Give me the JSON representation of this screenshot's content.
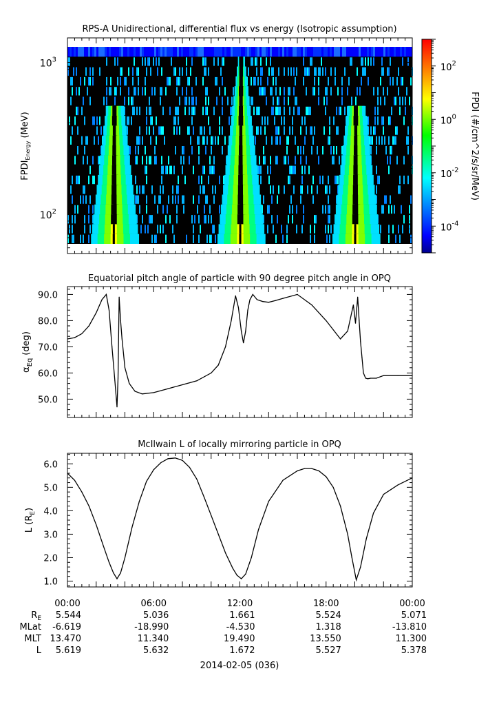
{
  "chart_data": [
    {
      "type": "heatmap",
      "title": "RPS-A Unidirectional, differential flux vs energy (Isotropic assumption)",
      "ylabel_main": "FPDI",
      "ylabel_sub": "Energy",
      "ylabel_unit": "(MeV)",
      "yscale": "log",
      "ylim": [
        55,
        1450
      ],
      "y_ticks": [
        {
          "value": 100,
          "base": "10",
          "exp": "2"
        },
        {
          "value": 1000,
          "base": "10",
          "exp": "3"
        }
      ],
      "x_ticks_hours": [
        0,
        6,
        12,
        18,
        24
      ],
      "enhancement_hours": [
        3.3,
        12.1,
        20.1
      ],
      "colorbar": {
        "label": "FPDI (#/cm^2/s/sr/MeV)",
        "scale": "log",
        "range": [
          1e-05,
          1000.0
        ],
        "ticks": [
          {
            "value": 100,
            "base": "10",
            "exp": "2"
          },
          {
            "value": 1,
            "base": "10",
            "exp": "0"
          },
          {
            "value": 0.01,
            "base": "10",
            "exp": "-2"
          },
          {
            "value": 0.0001,
            "base": "10",
            "exp": "-4"
          }
        ],
        "colors": [
          "#00008f",
          "#0000ff",
          "#00ffff",
          "#00ff00",
          "#ffff00",
          "#ff7f00",
          "#ff0000"
        ]
      },
      "background_color": "#000000"
    },
    {
      "type": "line",
      "title": "Equatorial pitch angle of particle with 90 degree pitch angle in OPQ",
      "ylabel_main": "α",
      "ylabel_sub": "Eq",
      "ylabel_unit": "(deg)",
      "ylim": [
        43,
        93
      ],
      "y_ticks": [
        50,
        60,
        70,
        80,
        90
      ],
      "x": [
        0,
        0.5,
        1.0,
        1.5,
        2.0,
        2.4,
        2.7,
        2.9,
        3.1,
        3.3,
        3.45,
        3.52,
        3.6,
        3.7,
        3.8,
        4.0,
        4.3,
        4.7,
        5.2,
        6.0,
        7.0,
        8.0,
        9.0,
        10.0,
        10.5,
        11.0,
        11.4,
        11.7,
        11.9,
        12.1,
        12.25,
        12.4,
        12.55,
        12.7,
        12.9,
        13.2,
        13.6,
        14.0,
        14.5,
        15.0,
        16.0,
        17.0,
        18.0,
        19.0,
        19.5,
        19.9,
        20.05,
        20.2,
        20.3,
        20.4,
        20.5,
        20.6,
        20.75,
        20.9,
        21.1,
        21.5,
        22.0,
        23.0,
        24.0
      ],
      "series": [
        {
          "color": "#000000",
          "values": [
            73,
            73.5,
            75,
            78,
            83,
            88,
            90,
            84,
            70,
            57,
            47,
            58,
            89,
            80,
            73,
            62,
            56,
            53,
            52,
            52.5,
            54,
            55.5,
            57,
            60,
            63,
            70,
            80,
            89.5,
            85,
            76,
            71.5,
            76,
            84,
            88,
            90,
            88,
            87.3,
            87,
            87.7,
            88.5,
            90,
            86,
            80,
            73,
            76,
            86,
            79,
            89,
            80,
            72,
            66,
            60,
            58,
            57.8,
            58,
            58,
            59,
            59,
            59
          ]
        }
      ]
    },
    {
      "type": "line",
      "title": "McIlwain L of locally mirroring particle in OPQ",
      "ylabel_main": "L (R",
      "ylabel_sub": "E",
      "ylabel_unit": ")",
      "ylim": [
        0.75,
        6.45
      ],
      "y_ticks": [
        1.0,
        2.0,
        3.0,
        4.0,
        5.0,
        6.0
      ],
      "x": [
        0,
        0.5,
        1.0,
        1.5,
        2.0,
        2.5,
        2.9,
        3.2,
        3.45,
        3.7,
        4.0,
        4.5,
        5.0,
        5.5,
        6.0,
        6.5,
        7.0,
        7.5,
        8.0,
        8.5,
        9.0,
        9.5,
        10.0,
        10.5,
        11.0,
        11.5,
        11.8,
        12.1,
        12.4,
        12.8,
        13.3,
        14.0,
        15.0,
        16.0,
        16.5,
        17.0,
        17.5,
        18.0,
        18.5,
        19.0,
        19.5,
        19.8,
        20.1,
        20.4,
        20.8,
        21.3,
        22.0,
        23.0,
        24.0
      ],
      "series": [
        {
          "color": "#000000",
          "values": [
            5.6,
            5.3,
            4.8,
            4.2,
            3.4,
            2.5,
            1.8,
            1.35,
            1.1,
            1.35,
            2.0,
            3.3,
            4.4,
            5.25,
            5.75,
            6.05,
            6.22,
            6.25,
            6.15,
            5.85,
            5.35,
            4.6,
            3.8,
            3.0,
            2.2,
            1.55,
            1.25,
            1.1,
            1.3,
            2.0,
            3.2,
            4.4,
            5.3,
            5.7,
            5.8,
            5.8,
            5.7,
            5.45,
            5.0,
            4.2,
            3.0,
            2.0,
            1.05,
            1.6,
            2.8,
            3.9,
            4.7,
            5.1,
            5.4
          ]
        }
      ]
    }
  ],
  "x_axis": {
    "tick_labels": [
      "00:00",
      "06:00",
      "12:00",
      "18:00",
      "00:00"
    ],
    "date_label": "2014-02-05 (036)"
  },
  "ephemeris": {
    "rows": [
      {
        "label": "R",
        "label_sub": "E",
        "values": [
          "5.544",
          "5.036",
          "1.661",
          "5.524",
          "5.071"
        ]
      },
      {
        "label": "MLat",
        "label_sub": "",
        "values": [
          "-6.619",
          "-18.990",
          "-4.530",
          "1.318",
          "-13.810"
        ]
      },
      {
        "label": "MLT",
        "label_sub": "",
        "values": [
          "13.470",
          "11.340",
          "19.490",
          "13.550",
          "11.300"
        ]
      },
      {
        "label": "L",
        "label_sub": "",
        "values": [
          "5.619",
          "5.632",
          "1.672",
          "5.527",
          "5.378"
        ]
      }
    ]
  }
}
